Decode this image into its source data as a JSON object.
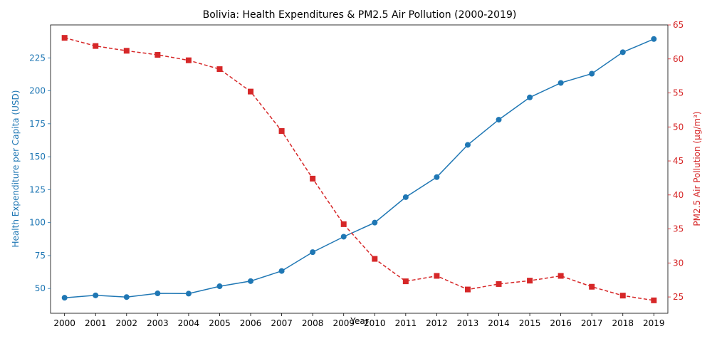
{
  "chart_data": {
    "type": "line",
    "title": "Bolivia: Health Expenditures & PM2.5 Air Pollution (2000-2019)",
    "xlabel": "Year",
    "ylabel_left": "Health Expenditure per Capita (USD)",
    "ylabel_right": "PM2.5 Air Pollution (µg/m³)",
    "x": [
      "2000",
      "2001",
      "2002",
      "2003",
      "2004",
      "2005",
      "2006",
      "2007",
      "2008",
      "2009",
      "2010",
      "2011",
      "2012",
      "2013",
      "2014",
      "2015",
      "2016",
      "2017",
      "2018",
      "2019"
    ],
    "series": [
      {
        "name": "",
        "axis": "left",
        "color": "#1f77b4",
        "marker": "circle",
        "linestyle": "solid",
        "values": [
          43.0,
          44.8,
          43.5,
          46.3,
          46.1,
          51.7,
          55.6,
          63.3,
          77.6,
          89.3,
          100.0,
          119.3,
          134.5,
          159.0,
          178.1,
          195.0,
          206.0,
          213.0,
          229.3,
          239.3
        ]
      },
      {
        "name": "",
        "axis": "right",
        "color": "#d62728",
        "marker": "square",
        "linestyle": "dashed",
        "values": [
          63.1,
          61.9,
          61.2,
          60.6,
          59.8,
          58.5,
          55.2,
          49.4,
          42.4,
          35.7,
          30.6,
          27.3,
          28.1,
          26.1,
          26.9,
          27.4,
          28.1,
          26.5,
          25.2,
          24.5
        ]
      }
    ],
    "yticks_left": [
      50,
      75,
      100,
      125,
      150,
      175,
      200,
      225
    ],
    "yticks_right": [
      25,
      30,
      35,
      40,
      45,
      50,
      55,
      60,
      65
    ],
    "ylim_left": [
      31.2,
      250.0
    ],
    "ylim_right": [
      22.6,
      65.0
    ],
    "grid": false,
    "legend": "none"
  }
}
